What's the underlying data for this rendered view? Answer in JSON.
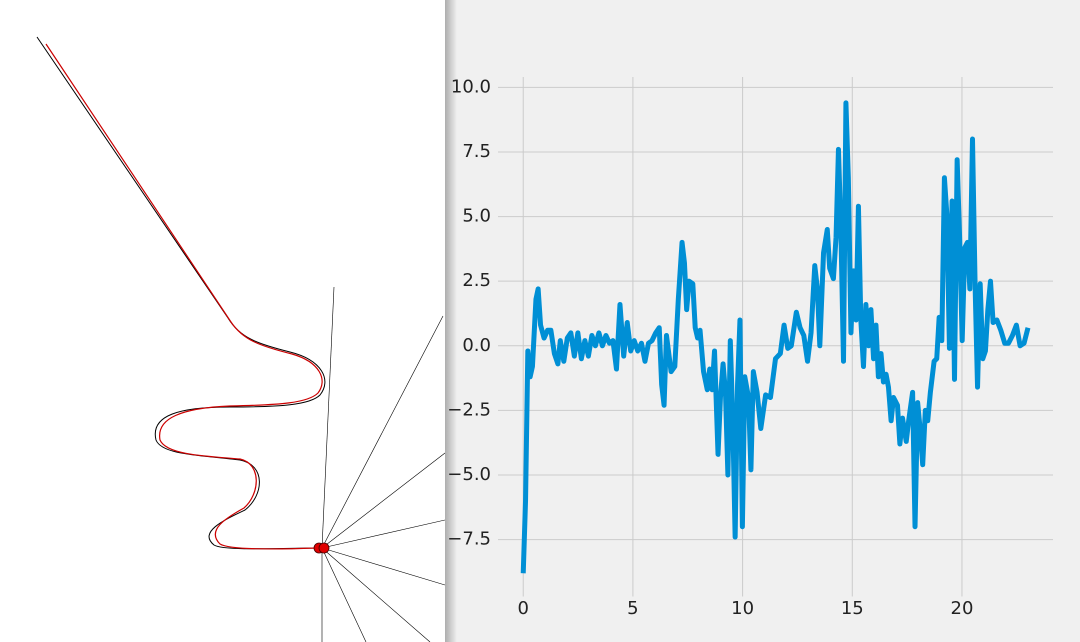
{
  "chart_data": {
    "type": "line",
    "color": "#008fd5",
    "grid": true,
    "xlim": [
      -1.15,
      24.15
    ],
    "ylim": [
      -9.7,
      10.4
    ],
    "xticks": [
      0,
      5,
      10,
      15,
      20
    ],
    "yticks": [
      {
        "value": -7.5,
        "label": "−7.5"
      },
      {
        "value": -5,
        "label": "−5.0"
      },
      {
        "value": -2.5,
        "label": "−2.5"
      },
      {
        "value": 0,
        "label": "0.0"
      },
      {
        "value": 2.5,
        "label": "2.5"
      },
      {
        "value": 5,
        "label": "5.0"
      },
      {
        "value": 7.5,
        "label": "7.5"
      },
      {
        "value": 10,
        "label": "10.0"
      }
    ],
    "x": [
      0,
      0.105,
      0.21,
      0.315,
      0.42,
      0.58,
      0.68,
      0.79,
      0.95,
      1.11,
      1.26,
      1.42,
      1.58,
      1.69,
      1.85,
      2.01,
      2.17,
      2.33,
      2.49,
      2.65,
      2.81,
      2.97,
      3.13,
      3.29,
      3.45,
      3.61,
      3.77,
      3.93,
      4.09,
      4.25,
      4.41,
      4.58,
      4.74,
      4.9,
      5.06,
      5.22,
      5.39,
      5.55,
      5.71,
      5.87,
      6.04,
      6.2,
      6.31,
      6.42,
      6.53,
      6.74,
      6.91,
      7.07,
      7.24,
      7.35,
      7.45,
      7.56,
      7.73,
      7.84,
      7.95,
      8.06,
      8.22,
      8.39,
      8.5,
      8.61,
      8.72,
      8.88,
      8.99,
      9.11,
      9.22,
      9.33,
      9.44,
      9.55,
      9.66,
      9.77,
      9.88,
      9.99,
      10.1,
      10.27,
      10.38,
      10.49,
      10.66,
      10.83,
      11.05,
      11.27,
      11.5,
      11.72,
      11.89,
      12.06,
      12.22,
      12.45,
      12.62,
      12.79,
      12.96,
      13.12,
      13.29,
      13.41,
      13.52,
      13.69,
      13.86,
      13.97,
      14.14,
      14.26,
      14.37,
      14.48,
      14.6,
      14.71,
      14.82,
      14.94,
      15.05,
      15.17,
      15.28,
      15.39,
      15.51,
      15.62,
      15.74,
      15.85,
      15.97,
      16.08,
      16.19,
      16.31,
      16.42,
      16.54,
      16.65,
      16.77,
      16.88,
      17.06,
      17.17,
      17.29,
      17.46,
      17.57,
      17.75,
      17.86,
      17.98,
      18.09,
      18.21,
      18.33,
      18.44,
      18.56,
      18.73,
      18.85,
      18.96,
      19.08,
      19.2,
      19.31,
      19.43,
      19.55,
      19.66,
      19.78,
      19.9,
      20.01,
      20.13,
      20.25,
      20.36,
      20.48,
      20.6,
      20.71,
      20.83,
      20.95,
      21.07,
      21.18,
      21.3,
      21.42,
      21.59,
      21.77,
      21.95,
      22.12,
      22.3,
      22.48,
      22.65,
      22.83,
      23.01
    ],
    "values": [
      -8.8,
      -6.0,
      -0.2,
      -1.2,
      -0.8,
      1.8,
      2.2,
      0.8,
      0.3,
      0.6,
      0.6,
      -0.3,
      -0.7,
      0.2,
      -0.6,
      0.3,
      0.5,
      -0.4,
      0.5,
      -0.5,
      0.2,
      -0.4,
      0.4,
      0.0,
      0.5,
      0.0,
      0.4,
      0.1,
      0.2,
      -0.9,
      1.6,
      -0.4,
      0.9,
      -0.2,
      0.2,
      -0.2,
      0.1,
      -0.6,
      0.1,
      0.2,
      0.5,
      0.7,
      -1.5,
      -2.3,
      0.4,
      -1.0,
      -0.8,
      1.8,
      4.0,
      3.2,
      1.4,
      2.5,
      2.4,
      0.7,
      0.3,
      0.6,
      -1.0,
      -1.7,
      -0.9,
      -1.7,
      -0.2,
      -4.2,
      -2.0,
      -0.7,
      -1.8,
      -5.0,
      0.2,
      -2.8,
      -7.4,
      -1.5,
      1.0,
      -7.0,
      -1.2,
      -2.0,
      -4.8,
      -1.0,
      -1.8,
      -3.2,
      -1.9,
      -2.0,
      -0.5,
      -0.3,
      0.8,
      -0.1,
      0.0,
      1.3,
      0.7,
      0.4,
      -0.6,
      0.5,
      3.1,
      2.2,
      0.0,
      3.6,
      4.5,
      3.0,
      2.6,
      4.2,
      7.6,
      4.5,
      -0.6,
      9.4,
      6.5,
      0.5,
      2.9,
      1.0,
      5.4,
      1.0,
      -0.8,
      1.6,
      0.0,
      1.4,
      -0.5,
      0.8,
      -1.2,
      -0.3,
      -1.4,
      -1.1,
      -1.6,
      -2.9,
      -2.0,
      -2.3,
      -3.8,
      -2.8,
      -3.7,
      -2.9,
      -1.8,
      -7.0,
      -2.2,
      -3.2,
      -4.6,
      -2.5,
      -2.9,
      -1.8,
      -0.6,
      -0.5,
      1.1,
      0.2,
      6.5,
      5.1,
      -0.1,
      5.6,
      -1.3,
      7.2,
      4.0,
      0.2,
      3.8,
      4.0,
      2.2,
      8.0,
      2.3,
      -1.6,
      2.4,
      -0.5,
      -0.2,
      1.4,
      2.5,
      0.9,
      1.0,
      0.6,
      0.1,
      0.1,
      0.4,
      0.8,
      0.0,
      0.1,
      0.7
    ]
  }
}
